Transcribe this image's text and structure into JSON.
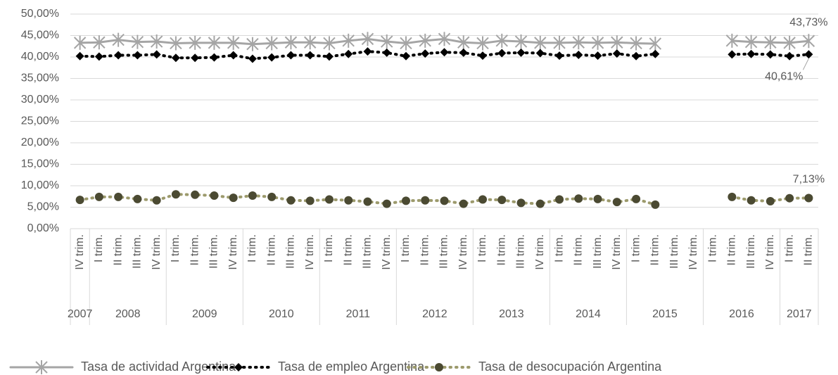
{
  "chart_data": {
    "type": "line",
    "categories": [
      "IV trim.",
      "I trim.",
      "II trim.",
      "III trim.",
      "IV trim.",
      "I trim.",
      "II trim.",
      "III trim.",
      "IV trim.",
      "I trim.",
      "II trim.",
      "III trim.",
      "IV trim.",
      "I trim.",
      "II trim.",
      "III trim.",
      "IV trim.",
      "I trim.",
      "II trim.",
      "III trim.",
      "IV trim.",
      "I trim.",
      "II trim.",
      "III trim.",
      "IV trim.",
      "I trim.",
      "II trim.",
      "III trim.",
      "IV trim.",
      "I trim.",
      "II trim.",
      "III trim.",
      "IV trim.",
      "I trim.",
      "II trim.",
      "III trim.",
      "IV trim.",
      "I trim.",
      "II trim."
    ],
    "year_groups": [
      {
        "label": "2007",
        "size": 1
      },
      {
        "label": "2008",
        "size": 4
      },
      {
        "label": "2009",
        "size": 4
      },
      {
        "label": "2010",
        "size": 4
      },
      {
        "label": "2011",
        "size": 4
      },
      {
        "label": "2012",
        "size": 4
      },
      {
        "label": "2013",
        "size": 4
      },
      {
        "label": "2014",
        "size": 4
      },
      {
        "label": "2015",
        "size": 4
      },
      {
        "label": "2016",
        "size": 4
      },
      {
        "label": "2017",
        "size": 2
      }
    ],
    "ylim": [
      0,
      50
    ],
    "yticks": [
      {
        "value": 0,
        "label": "0,00%"
      },
      {
        "value": 5,
        "label": "5,00%"
      },
      {
        "value": 10,
        "label": "10,00%"
      },
      {
        "value": 15,
        "label": "15,00%"
      },
      {
        "value": 20,
        "label": "20,00%"
      },
      {
        "value": 25,
        "label": "25,00%"
      },
      {
        "value": 30,
        "label": "30,00%"
      },
      {
        "value": 35,
        "label": "35,00%"
      },
      {
        "value": 40,
        "label": "40,00%"
      },
      {
        "value": 45,
        "label": "45,00%"
      },
      {
        "value": 50,
        "label": "50,00%"
      }
    ],
    "grid": true,
    "legend": "bottom",
    "series": [
      {
        "name": "Tasa de actividad Argentina",
        "color": "#a5a5a5",
        "marker": "star",
        "marker_color": "#a5a5a5",
        "dash": "solid",
        "values": [
          43.3,
          43.4,
          44.0,
          43.5,
          43.6,
          43.2,
          43.3,
          43.3,
          43.3,
          43.0,
          43.2,
          43.4,
          43.4,
          43.2,
          43.8,
          44.2,
          43.6,
          43.2,
          43.8,
          44.2,
          43.4,
          43.2,
          43.8,
          43.6,
          43.3,
          43.3,
          43.4,
          43.3,
          43.4,
          43.2,
          43.1,
          null,
          null,
          null,
          43.8,
          43.5,
          43.4,
          43.3,
          43.73
        ],
        "value_labels": [
          null,
          null,
          null,
          null,
          null,
          null,
          null,
          null,
          null,
          null,
          null,
          null,
          null,
          null,
          null,
          null,
          null,
          null,
          null,
          null,
          null,
          null,
          null,
          null,
          null,
          null,
          null,
          null,
          null,
          null,
          null,
          null,
          null,
          null,
          null,
          null,
          null,
          null,
          "43,73%"
        ]
      },
      {
        "name": "Tasa de empleo Argentina",
        "color": "#000000",
        "marker": "diamond",
        "marker_color": "#000000",
        "dash": "dot",
        "values": [
          40.2,
          40.1,
          40.4,
          40.4,
          40.6,
          39.8,
          39.8,
          39.9,
          40.4,
          39.6,
          39.9,
          40.4,
          40.4,
          40.1,
          40.7,
          41.3,
          41.0,
          40.2,
          40.8,
          41.1,
          41.0,
          40.3,
          40.9,
          41.0,
          40.9,
          40.3,
          40.5,
          40.3,
          40.8,
          40.2,
          40.7,
          null,
          null,
          null,
          40.6,
          40.7,
          40.6,
          40.2,
          40.61
        ],
        "value_labels": [
          null,
          null,
          null,
          null,
          null,
          null,
          null,
          null,
          null,
          null,
          null,
          null,
          null,
          null,
          null,
          null,
          null,
          null,
          null,
          null,
          null,
          null,
          null,
          null,
          null,
          null,
          null,
          null,
          null,
          null,
          null,
          null,
          null,
          null,
          null,
          null,
          null,
          null,
          "40,61%"
        ]
      },
      {
        "name": "Tasa de desocupación Argentina",
        "color": "#9c9a6c",
        "marker": "circle",
        "marker_color": "#4b4a32",
        "dash": "dot",
        "values": [
          6.7,
          7.4,
          7.4,
          6.9,
          6.6,
          8.0,
          7.9,
          7.7,
          7.2,
          7.7,
          7.4,
          6.6,
          6.5,
          6.8,
          6.6,
          6.3,
          5.8,
          6.5,
          6.6,
          6.5,
          5.8,
          6.8,
          6.7,
          6.0,
          5.8,
          6.8,
          7.0,
          6.9,
          6.2,
          6.9,
          5.6,
          null,
          null,
          null,
          7.4,
          6.6,
          6.4,
          7.1,
          7.13
        ],
        "value_labels": [
          null,
          null,
          null,
          null,
          null,
          null,
          null,
          null,
          null,
          null,
          null,
          null,
          null,
          null,
          null,
          null,
          null,
          null,
          null,
          null,
          null,
          null,
          null,
          null,
          null,
          null,
          null,
          null,
          null,
          null,
          null,
          null,
          null,
          null,
          null,
          null,
          null,
          null,
          "7,13%"
        ]
      }
    ]
  }
}
